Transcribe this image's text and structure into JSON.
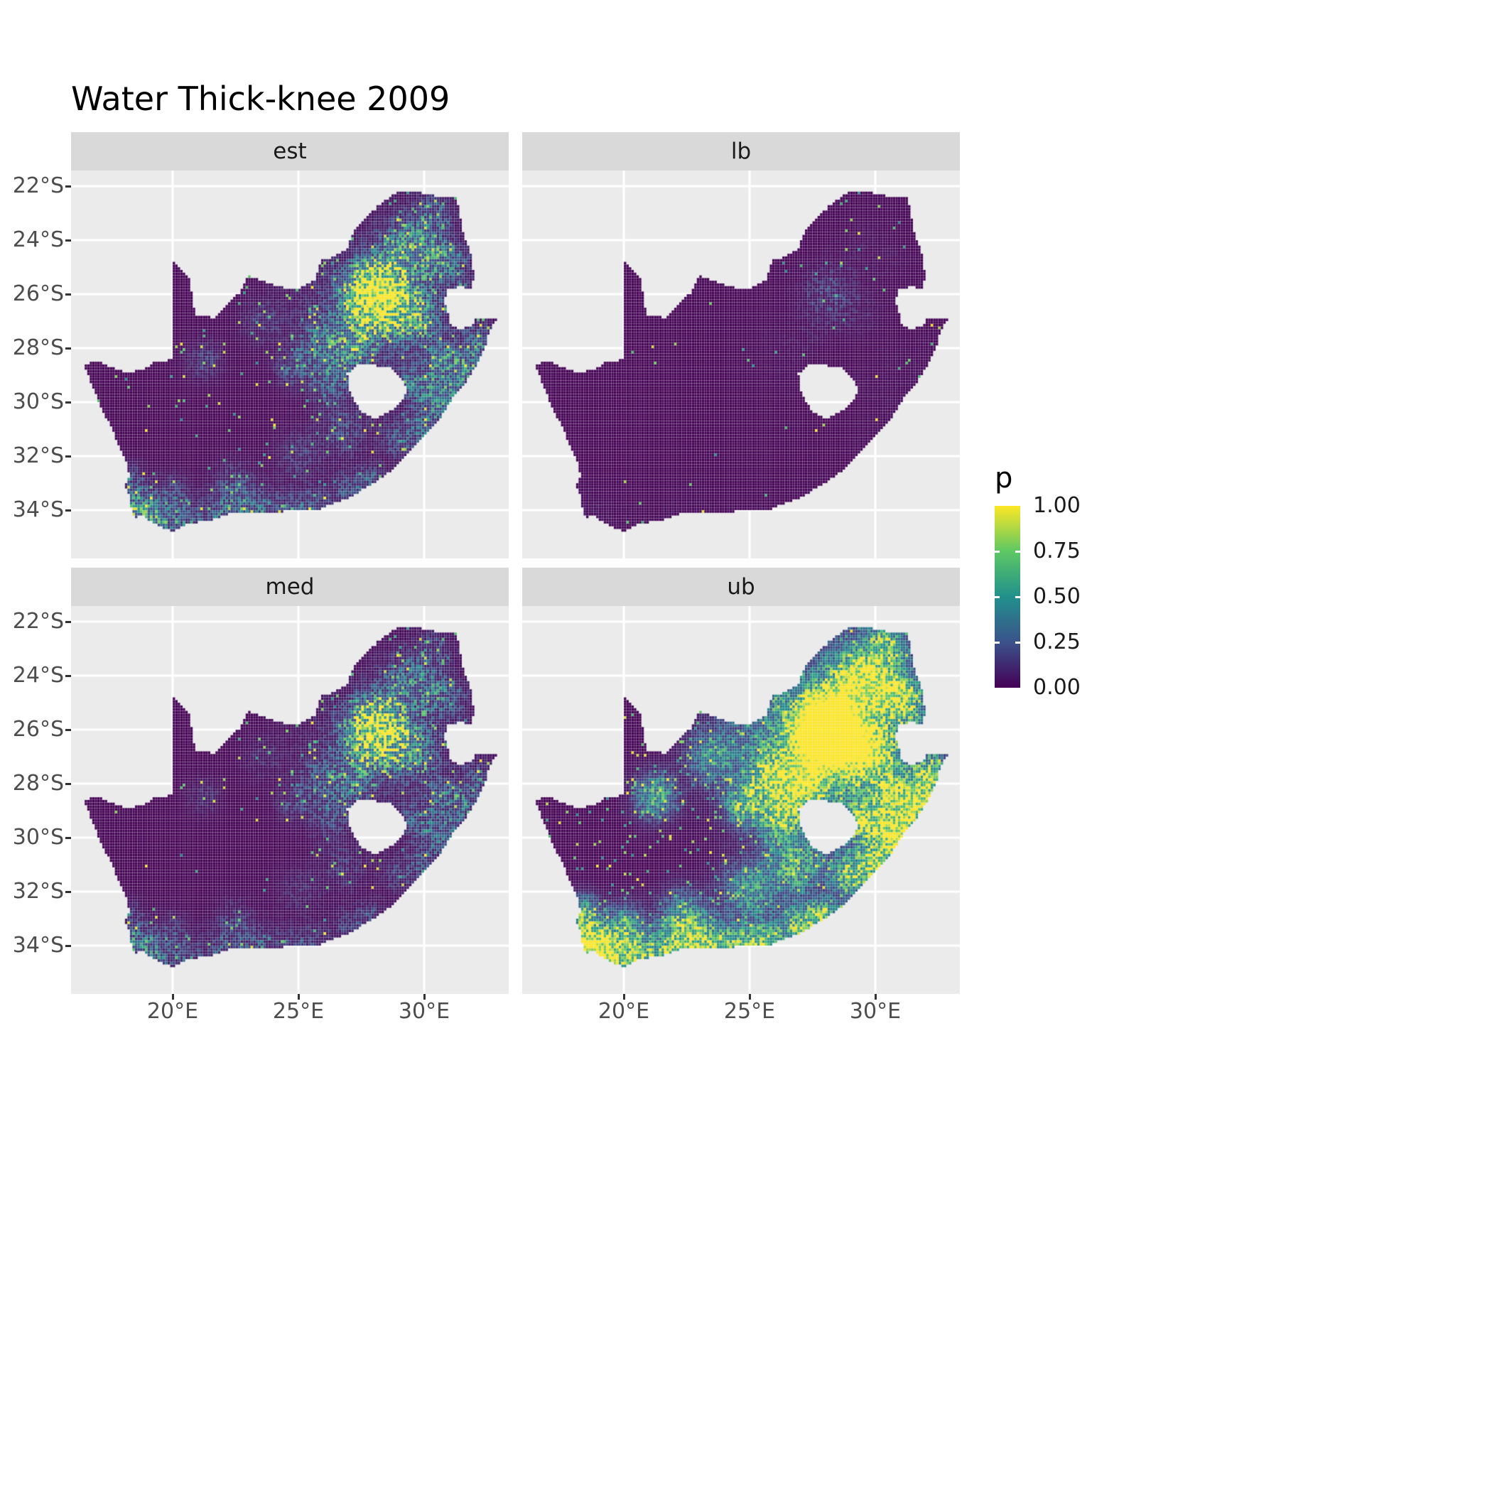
{
  "title": "Water Thick-knee 2009",
  "facets": [
    {
      "id": "est",
      "label": "est",
      "gain": 1.0,
      "gamma": 1.15,
      "speckle": 0.01,
      "hotspot_speckle": 0.09
    },
    {
      "id": "lb",
      "label": "lb",
      "gain": 0.18,
      "gamma": 1.6,
      "speckle": 0.0015,
      "hotspot_speckle": 0.012
    },
    {
      "id": "med",
      "label": "med",
      "gain": 0.8,
      "gamma": 1.25,
      "speckle": 0.006,
      "hotspot_speckle": 0.06
    },
    {
      "id": "ub",
      "label": "ub",
      "gain": 2.6,
      "gamma": 0.75,
      "speckle": 0.035,
      "hotspot_speckle": 0.22
    }
  ],
  "axes": {
    "x_ticks": [
      "20°E",
      "25°E",
      "30°E"
    ],
    "x_tick_lons": [
      20,
      25,
      30
    ],
    "y_ticks": [
      "22°S",
      "24°S",
      "26°S",
      "28°S",
      "30°S",
      "32°S",
      "34°S"
    ],
    "y_tick_lats": [
      -22,
      -24,
      -26,
      -28,
      -30,
      -32,
      -34
    ],
    "lon_range": [
      15.96,
      33.36
    ],
    "lat_range": [
      -35.79,
      -21.42
    ]
  },
  "legend": {
    "title": "p",
    "ticks": [
      "1.00",
      "0.75",
      "0.50",
      "0.25",
      "0.00"
    ],
    "tick_values": [
      1,
      0.75,
      0.5,
      0.25,
      0
    ],
    "gradient": [
      {
        "t": 0,
        "c": "#440154"
      },
      {
        "t": 0.25,
        "c": "#3B528B"
      },
      {
        "t": 0.5,
        "c": "#21908C"
      },
      {
        "t": 0.75,
        "c": "#5DC863"
      },
      {
        "t": 1,
        "c": "#FDE725"
      }
    ]
  },
  "colors": {
    "panel_bg": "#EBEBEB",
    "strip_bg": "#D9D9D9",
    "grid": "#FFFFFF",
    "tick_label": "#4D4D4D",
    "text": "#1A1A1A",
    "na_fill": "#440154"
  },
  "map": {
    "region": "South Africa raster (Lesotho excluded)",
    "cell_deg": 0.1,
    "outline": [
      [
        16.45,
        -28.58
      ],
      [
        16.78,
        -29.32
      ],
      [
        17.05,
        -29.95
      ],
      [
        17.28,
        -30.45
      ],
      [
        17.62,
        -31.05
      ],
      [
        17.9,
        -31.7
      ],
      [
        18.2,
        -32.35
      ],
      [
        18.3,
        -32.78
      ],
      [
        18.05,
        -33.1
      ],
      [
        18.32,
        -33.48
      ],
      [
        18.36,
        -34.05
      ],
      [
        18.5,
        -34.35
      ],
      [
        18.82,
        -34.12
      ],
      [
        19.12,
        -34.42
      ],
      [
        19.62,
        -34.65
      ],
      [
        20.02,
        -34.82
      ],
      [
        20.62,
        -34.47
      ],
      [
        21.32,
        -34.43
      ],
      [
        22.05,
        -34.2
      ],
      [
        22.62,
        -34.05
      ],
      [
        23.42,
        -34.12
      ],
      [
        24.22,
        -34.06
      ],
      [
        25.02,
        -34.0
      ],
      [
        25.68,
        -34.04
      ],
      [
        26.32,
        -33.76
      ],
      [
        27.05,
        -33.52
      ],
      [
        27.92,
        -33.04
      ],
      [
        28.62,
        -32.58
      ],
      [
        29.32,
        -31.95
      ],
      [
        30.02,
        -31.25
      ],
      [
        30.72,
        -30.48
      ],
      [
        31.12,
        -29.88
      ],
      [
        31.72,
        -29.18
      ],
      [
        32.12,
        -28.58
      ],
      [
        32.42,
        -27.98
      ],
      [
        32.58,
        -27.38
      ],
      [
        32.92,
        -26.86
      ],
      [
        32.05,
        -26.85
      ],
      [
        31.97,
        -27.1
      ],
      [
        31.5,
        -27.32
      ],
      [
        31.08,
        -27.2
      ],
      [
        30.95,
        -26.7
      ],
      [
        30.8,
        -26.3
      ],
      [
        30.9,
        -25.85
      ],
      [
        31.42,
        -25.72
      ],
      [
        31.9,
        -25.82
      ],
      [
        31.98,
        -25.3
      ],
      [
        31.88,
        -24.6
      ],
      [
        31.55,
        -23.7
      ],
      [
        31.3,
        -22.4
      ],
      [
        30.4,
        -22.35
      ],
      [
        29.4,
        -22.16
      ],
      [
        29.0,
        -22.2
      ],
      [
        28.3,
        -22.6
      ],
      [
        27.7,
        -23.2
      ],
      [
        27.2,
        -23.65
      ],
      [
        26.95,
        -24.3
      ],
      [
        26.4,
        -24.63
      ],
      [
        25.9,
        -24.74
      ],
      [
        25.66,
        -25.46
      ],
      [
        25.1,
        -25.76
      ],
      [
        24.4,
        -25.76
      ],
      [
        23.9,
        -25.62
      ],
      [
        23.0,
        -25.32
      ],
      [
        22.64,
        -25.98
      ],
      [
        22.1,
        -26.4
      ],
      [
        21.7,
        -26.86
      ],
      [
        20.9,
        -26.82
      ],
      [
        20.68,
        -25.47
      ],
      [
        20.0,
        -24.76
      ],
      [
        19.99,
        -28.42
      ],
      [
        19.3,
        -28.52
      ],
      [
        18.7,
        -28.84
      ],
      [
        18.1,
        -28.87
      ],
      [
        17.56,
        -28.7
      ],
      [
        17.1,
        -28.5
      ]
    ],
    "hole": [
      [
        26.95,
        -28.95
      ],
      [
        27.4,
        -28.6
      ],
      [
        28.1,
        -28.65
      ],
      [
        28.7,
        -28.75
      ],
      [
        29.1,
        -29.1
      ],
      [
        29.35,
        -29.55
      ],
      [
        29.15,
        -29.95
      ],
      [
        28.7,
        -30.3
      ],
      [
        28.1,
        -30.62
      ],
      [
        27.55,
        -30.4
      ],
      [
        27.2,
        -29.95
      ],
      [
        27.0,
        -29.5
      ]
    ],
    "hotspots": [
      [
        28.05,
        -26.1,
        0.85,
        1.05
      ],
      [
        27.6,
        -25.7,
        0.6,
        0.7
      ],
      [
        28.35,
        -25.45,
        0.5,
        0.7
      ],
      [
        28.9,
        -26.3,
        0.6,
        0.6
      ],
      [
        29.45,
        -23.9,
        0.7,
        0.5
      ],
      [
        30.2,
        -24.55,
        0.6,
        0.45
      ],
      [
        31.0,
        -24.9,
        0.6,
        0.5
      ],
      [
        30.5,
        -22.9,
        0.5,
        0.4
      ],
      [
        28.8,
        -24.7,
        0.6,
        0.4
      ],
      [
        29.2,
        -26.6,
        0.7,
        0.5
      ],
      [
        30.0,
        -26.9,
        0.6,
        0.45
      ],
      [
        27.9,
        -26.8,
        0.7,
        0.6
      ],
      [
        26.7,
        -27.7,
        0.7,
        0.45
      ],
      [
        25.6,
        -27.8,
        0.5,
        0.35
      ],
      [
        26.2,
        -29.1,
        0.6,
        0.55
      ],
      [
        24.75,
        -28.75,
        0.45,
        0.4
      ],
      [
        21.25,
        -28.45,
        0.5,
        0.35
      ],
      [
        23.5,
        -27.0,
        0.6,
        0.25
      ],
      [
        27.3,
        -28.2,
        0.5,
        0.4
      ],
      [
        29.6,
        -29.3,
        0.5,
        0.5
      ],
      [
        30.6,
        -28.4,
        0.5,
        0.45
      ],
      [
        30.9,
        -29.85,
        0.6,
        0.8
      ],
      [
        31.6,
        -28.75,
        0.5,
        0.6
      ],
      [
        32.2,
        -27.8,
        0.5,
        0.55
      ],
      [
        30.0,
        -30.9,
        0.45,
        0.55
      ],
      [
        29.0,
        -31.45,
        0.5,
        0.45
      ],
      [
        27.9,
        -33.0,
        0.45,
        0.55
      ],
      [
        26.9,
        -33.3,
        0.5,
        0.45
      ],
      [
        25.6,
        -33.92,
        0.45,
        0.6
      ],
      [
        24.5,
        -34.05,
        0.5,
        0.5
      ],
      [
        23.1,
        -34.02,
        0.6,
        0.6
      ],
      [
        21.9,
        -34.15,
        0.5,
        0.5
      ],
      [
        20.4,
        -34.45,
        0.6,
        0.6
      ],
      [
        19.2,
        -34.45,
        0.5,
        0.6
      ],
      [
        18.6,
        -33.95,
        0.55,
        0.9
      ],
      [
        18.35,
        -32.8,
        0.4,
        0.4
      ],
      [
        22.4,
        -33.0,
        0.6,
        0.35
      ],
      [
        25.0,
        -32.0,
        0.7,
        0.3
      ],
      [
        26.8,
        -31.0,
        0.7,
        0.35
      ],
      [
        20.0,
        -33.3,
        0.5,
        0.3
      ],
      [
        29.0,
        -25.5,
        2.4,
        0.18
      ],
      [
        29.5,
        -28.3,
        2.0,
        0.12
      ],
      [
        26.0,
        -26.6,
        1.5,
        0.15
      ]
    ]
  },
  "chart_data": {
    "type": "heatmap",
    "title": "Water Thick-knee 2009",
    "facets": [
      "est",
      "lb",
      "med",
      "ub"
    ],
    "geography": "Occurrence-probability raster over South Africa (~0.1° cells), Lesotho shown as hole",
    "x": {
      "ticks": [
        "20°E",
        "25°E",
        "30°E"
      ],
      "range": [
        16.0,
        33.4
      ],
      "unit": "degrees east"
    },
    "y": {
      "ticks": [
        "22°S",
        "24°S",
        "26°S",
        "28°S",
        "30°S",
        "32°S",
        "34°S"
      ],
      "range": [
        -35.8,
        -21.4
      ],
      "unit": "degrees south latitude"
    },
    "color": {
      "variable": "p",
      "range": [
        0,
        1
      ],
      "ticks": [
        0.0,
        0.25,
        0.5,
        0.75,
        1.0
      ],
      "palette": "viridis"
    },
    "facet_summary": [
      {
        "facet": "est",
        "description": "mostly p≈0 (dark purple); scattered mid/high p around Gauteng and north-east interior plus southern and eastern coasts",
        "approx_mean_p": 0.05
      },
      {
        "facet": "lb",
        "description": "nearly uniform p≈0 with only a few isolated low/mid cells",
        "approx_mean_p": 0.01
      },
      {
        "facet": "med",
        "description": "similar spatial pattern to est but sparser and dimmer",
        "approx_mean_p": 0.04
      },
      {
        "facet": "ub",
        "description": "large high-p (yellow) clusters across the north-east / Gauteng / KwaZulu-Natal and along the south and east coastline",
        "approx_mean_p": 0.2
      }
    ],
    "legend_position": "right",
    "grid": true
  }
}
